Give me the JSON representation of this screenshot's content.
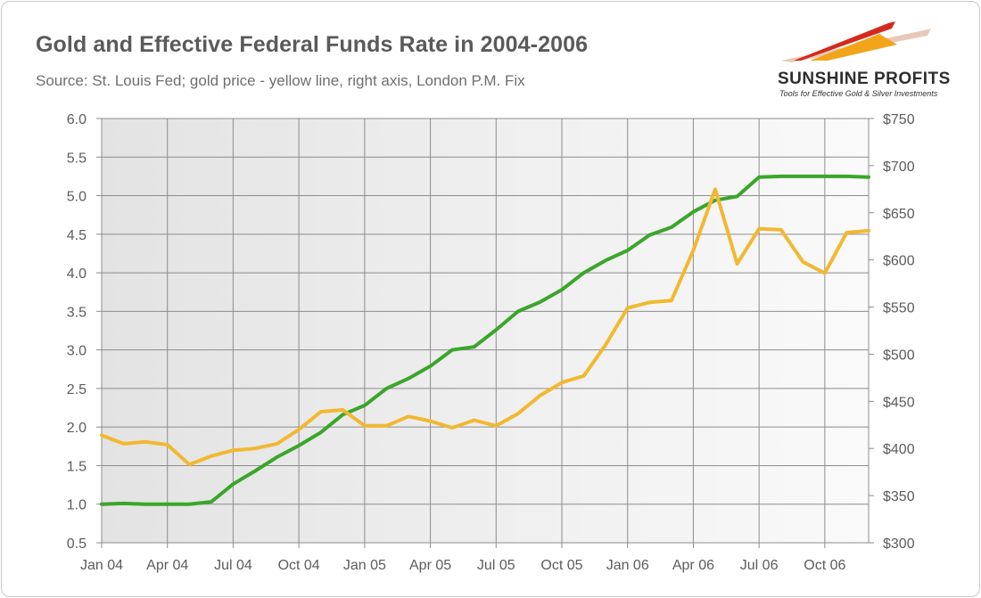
{
  "header": {
    "title": "Gold and Effective Federal Funds Rate in 2004-2006",
    "subtitle": "Source: St. Louis Fed; gold price - yellow line, right axis, London P.M. Fix"
  },
  "logo": {
    "name": "SUNSHINE PROFITS",
    "tagline": "Tools for Effective Gold & Silver Investments",
    "colors": [
      "#d42a1e",
      "#f2a51a",
      "#e8c9b8"
    ]
  },
  "chart_data": {
    "type": "line",
    "title": "Gold and Effective Federal Funds Rate in 2004-2006",
    "subtitle": "Source: St. Louis Fed; gold price - yellow line, right axis, London P.M. Fix",
    "xlabel": "",
    "ylabel": "",
    "y2label": "",
    "x": [
      "2004-01",
      "2004-02",
      "2004-03",
      "2004-04",
      "2004-05",
      "2004-06",
      "2004-07",
      "2004-08",
      "2004-09",
      "2004-10",
      "2004-11",
      "2004-12",
      "2005-01",
      "2005-02",
      "2005-03",
      "2005-04",
      "2005-05",
      "2005-06",
      "2005-07",
      "2005-08",
      "2005-09",
      "2005-10",
      "2005-11",
      "2005-12",
      "2006-01",
      "2006-02",
      "2006-03",
      "2006-04",
      "2006-05",
      "2006-06",
      "2006-07",
      "2006-08",
      "2006-09",
      "2006-10",
      "2006-11",
      "2006-12"
    ],
    "x_tick_labels": [
      "Jan 04",
      "Apr 04",
      "Jul 04",
      "Oct 04",
      "Jan 05",
      "Apr 05",
      "Jul 05",
      "Oct 05",
      "Jan 06",
      "Apr 06",
      "Jul 06",
      "Oct 06"
    ],
    "ylim": [
      0.5,
      6.0
    ],
    "yticks": [
      "6.0",
      "5.5",
      "5.0",
      "4.5",
      "4.0",
      "3.5",
      "3.0",
      "2.5",
      "2.0",
      "1.5",
      "1.0",
      "0.5"
    ],
    "y2lim": [
      300,
      750
    ],
    "y2ticks": [
      "$750",
      "$700",
      "$650",
      "$600",
      "$550",
      "$500",
      "$450",
      "$400",
      "$350",
      "$300"
    ],
    "grid": true,
    "series": [
      {
        "axis": "left",
        "color": "#3aa62a",
        "values": [
          1.0,
          1.01,
          1.0,
          1.0,
          1.0,
          1.03,
          1.26,
          1.43,
          1.61,
          1.76,
          1.93,
          2.16,
          2.28,
          2.5,
          2.63,
          2.79,
          3.0,
          3.04,
          3.26,
          3.5,
          3.62,
          3.78,
          4.0,
          4.16,
          4.29,
          4.49,
          4.59,
          4.79,
          4.94,
          4.99,
          5.24,
          5.25,
          5.25,
          5.25,
          5.25,
          5.24
        ]
      },
      {
        "axis": "right",
        "color": "#f2b830",
        "values": [
          414,
          405,
          407,
          404,
          383,
          392,
          398,
          400,
          405,
          420,
          439,
          441,
          424,
          424,
          434,
          429,
          422,
          430,
          424,
          437,
          456,
          470,
          477,
          510,
          549,
          555,
          557,
          610,
          675,
          596,
          633,
          632,
          598,
          586,
          629,
          631
        ]
      }
    ]
  }
}
